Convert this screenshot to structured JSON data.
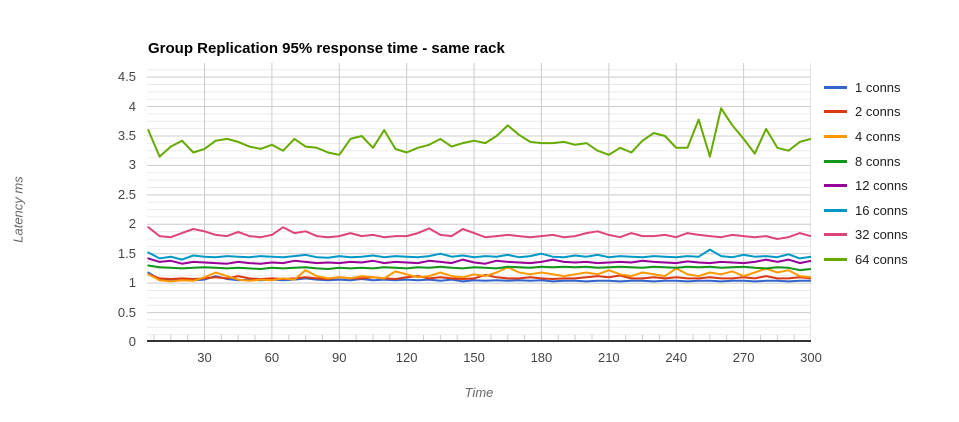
{
  "chart_data": {
    "type": "line",
    "title": "Group Replication 95% response time - same rack",
    "xlabel": "Time",
    "ylabel": "Latency ms",
    "legend_position": "right",
    "grid": "major+minor horizontal, major vertical",
    "xlim": [
      4.4,
      300
    ],
    "ylim": [
      0,
      4.74
    ],
    "y_major_ticks": [
      0,
      0.5,
      1,
      1.5,
      2,
      2.5,
      3,
      3.5,
      4,
      4.5
    ],
    "y_tick_labels": [
      "0",
      "0.5",
      "1",
      "1.5",
      "2",
      "2.5",
      "3",
      "3.5",
      "4",
      "4.5"
    ],
    "x_ticks": [
      30,
      60,
      90,
      120,
      150,
      180,
      210,
      240,
      270,
      300
    ],
    "x": [
      5,
      10,
      15,
      20,
      25,
      30,
      35,
      40,
      45,
      50,
      55,
      60,
      65,
      70,
      75,
      80,
      85,
      90,
      95,
      100,
      105,
      110,
      115,
      120,
      125,
      130,
      135,
      140,
      145,
      150,
      155,
      160,
      165,
      170,
      175,
      180,
      185,
      190,
      195,
      200,
      205,
      210,
      215,
      220,
      225,
      230,
      235,
      240,
      245,
      250,
      255,
      260,
      265,
      270,
      275,
      280,
      285,
      290,
      295,
      300
    ],
    "series": [
      {
        "name": "1 conns",
        "color": "#3366cc",
        "values": [
          1.18,
          1.06,
          1.05,
          1.07,
          1.05,
          1.06,
          1.12,
          1.07,
          1.05,
          1.06,
          1.05,
          1.06,
          1.05,
          1.06,
          1.08,
          1.06,
          1.05,
          1.06,
          1.05,
          1.07,
          1.05,
          1.06,
          1.05,
          1.06,
          1.05,
          1.06,
          1.04,
          1.06,
          1.03,
          1.05,
          1.04,
          1.05,
          1.04,
          1.05,
          1.04,
          1.05,
          1.03,
          1.04,
          1.04,
          1.03,
          1.04,
          1.04,
          1.03,
          1.04,
          1.04,
          1.03,
          1.04,
          1.04,
          1.03,
          1.04,
          1.04,
          1.03,
          1.04,
          1.04,
          1.03,
          1.04,
          1.04,
          1.03,
          1.04,
          1.04
        ]
      },
      {
        "name": "2 conns",
        "color": "#dc3912",
        "values": [
          1.15,
          1.08,
          1.07,
          1.08,
          1.07,
          1.08,
          1.1,
          1.08,
          1.12,
          1.08,
          1.07,
          1.08,
          1.07,
          1.08,
          1.1,
          1.08,
          1.07,
          1.1,
          1.08,
          1.08,
          1.1,
          1.08,
          1.07,
          1.1,
          1.12,
          1.08,
          1.1,
          1.08,
          1.07,
          1.08,
          1.14,
          1.1,
          1.08,
          1.08,
          1.1,
          1.08,
          1.07,
          1.08,
          1.08,
          1.1,
          1.12,
          1.1,
          1.13,
          1.08,
          1.08,
          1.1,
          1.08,
          1.1,
          1.08,
          1.08,
          1.1,
          1.08,
          1.08,
          1.1,
          1.08,
          1.12,
          1.08,
          1.08,
          1.1,
          1.08
        ]
      },
      {
        "name": "4 conns",
        "color": "#ff9900",
        "values": [
          1.15,
          1.05,
          1.03,
          1.05,
          1.04,
          1.1,
          1.18,
          1.12,
          1.06,
          1.04,
          1.06,
          1.05,
          1.08,
          1.06,
          1.22,
          1.12,
          1.08,
          1.1,
          1.08,
          1.12,
          1.1,
          1.08,
          1.2,
          1.15,
          1.1,
          1.12,
          1.18,
          1.12,
          1.1,
          1.15,
          1.12,
          1.18,
          1.27,
          1.18,
          1.15,
          1.18,
          1.15,
          1.12,
          1.15,
          1.18,
          1.15,
          1.22,
          1.15,
          1.12,
          1.18,
          1.15,
          1.12,
          1.25,
          1.15,
          1.12,
          1.18,
          1.15,
          1.2,
          1.12,
          1.18,
          1.25,
          1.18,
          1.22,
          1.12,
          1.1
        ]
      },
      {
        "name": "8 conns",
        "color": "#109618",
        "values": [
          1.3,
          1.27,
          1.26,
          1.25,
          1.26,
          1.27,
          1.26,
          1.25,
          1.26,
          1.25,
          1.24,
          1.26,
          1.25,
          1.26,
          1.27,
          1.25,
          1.24,
          1.26,
          1.25,
          1.26,
          1.25,
          1.27,
          1.26,
          1.25,
          1.27,
          1.26,
          1.28,
          1.26,
          1.25,
          1.27,
          1.26,
          1.25,
          1.28,
          1.27,
          1.26,
          1.28,
          1.27,
          1.28,
          1.27,
          1.28,
          1.26,
          1.27,
          1.28,
          1.27,
          1.26,
          1.28,
          1.27,
          1.26,
          1.28,
          1.27,
          1.28,
          1.26,
          1.27,
          1.28,
          1.26,
          1.25,
          1.27,
          1.26,
          1.22,
          1.24
        ]
      },
      {
        "name": "12 conns",
        "color": "#990099",
        "values": [
          1.42,
          1.36,
          1.38,
          1.33,
          1.36,
          1.35,
          1.34,
          1.33,
          1.36,
          1.34,
          1.33,
          1.35,
          1.34,
          1.38,
          1.36,
          1.34,
          1.35,
          1.34,
          1.36,
          1.35,
          1.38,
          1.34,
          1.36,
          1.35,
          1.34,
          1.38,
          1.36,
          1.34,
          1.4,
          1.35,
          1.33,
          1.38,
          1.36,
          1.35,
          1.34,
          1.36,
          1.4,
          1.36,
          1.35,
          1.36,
          1.34,
          1.35,
          1.36,
          1.35,
          1.38,
          1.36,
          1.35,
          1.34,
          1.37,
          1.35,
          1.34,
          1.36,
          1.35,
          1.34,
          1.36,
          1.4,
          1.36,
          1.4,
          1.34,
          1.38
        ]
      },
      {
        "name": "16 conns",
        "color": "#0099c6",
        "values": [
          1.52,
          1.42,
          1.45,
          1.4,
          1.47,
          1.45,
          1.44,
          1.46,
          1.45,
          1.44,
          1.46,
          1.45,
          1.44,
          1.46,
          1.48,
          1.44,
          1.43,
          1.46,
          1.44,
          1.45,
          1.47,
          1.44,
          1.46,
          1.45,
          1.44,
          1.46,
          1.5,
          1.45,
          1.47,
          1.44,
          1.46,
          1.45,
          1.48,
          1.44,
          1.46,
          1.5,
          1.45,
          1.44,
          1.47,
          1.45,
          1.48,
          1.44,
          1.46,
          1.45,
          1.44,
          1.46,
          1.45,
          1.44,
          1.46,
          1.45,
          1.57,
          1.46,
          1.44,
          1.48,
          1.45,
          1.46,
          1.44,
          1.49,
          1.42,
          1.45
        ]
      },
      {
        "name": "32 conns",
        "color": "#dd4477",
        "values": [
          1.95,
          1.8,
          1.78,
          1.85,
          1.92,
          1.88,
          1.82,
          1.8,
          1.87,
          1.8,
          1.78,
          1.82,
          1.95,
          1.85,
          1.88,
          1.8,
          1.78,
          1.8,
          1.85,
          1.8,
          1.82,
          1.78,
          1.8,
          1.8,
          1.85,
          1.93,
          1.82,
          1.8,
          1.92,
          1.85,
          1.78,
          1.8,
          1.82,
          1.8,
          1.78,
          1.8,
          1.82,
          1.78,
          1.8,
          1.85,
          1.88,
          1.82,
          1.78,
          1.85,
          1.8,
          1.8,
          1.82,
          1.78,
          1.85,
          1.82,
          1.8,
          1.78,
          1.82,
          1.8,
          1.78,
          1.8,
          1.75,
          1.78,
          1.85,
          1.8
        ]
      },
      {
        "name": "64 conns",
        "color": "#66aa00",
        "values": [
          3.6,
          3.15,
          3.32,
          3.42,
          3.22,
          3.28,
          3.42,
          3.45,
          3.4,
          3.32,
          3.28,
          3.35,
          3.25,
          3.45,
          3.32,
          3.3,
          3.22,
          3.18,
          3.45,
          3.5,
          3.3,
          3.6,
          3.28,
          3.22,
          3.3,
          3.35,
          3.45,
          3.32,
          3.38,
          3.42,
          3.38,
          3.5,
          3.68,
          3.52,
          3.4,
          3.38,
          3.38,
          3.4,
          3.35,
          3.38,
          3.25,
          3.18,
          3.3,
          3.22,
          3.42,
          3.55,
          3.5,
          3.3,
          3.3,
          3.78,
          3.15,
          3.97,
          3.68,
          3.45,
          3.2,
          3.62,
          3.3,
          3.25,
          3.4,
          3.45
        ]
      }
    ]
  },
  "style_colors": {
    "major_grid": "#cccccc",
    "minor_grid": "#ebebeb",
    "baseline": "#333333",
    "tick_text": "#444444",
    "axis_title_text": "#666666",
    "legend_text": "#222222"
  }
}
